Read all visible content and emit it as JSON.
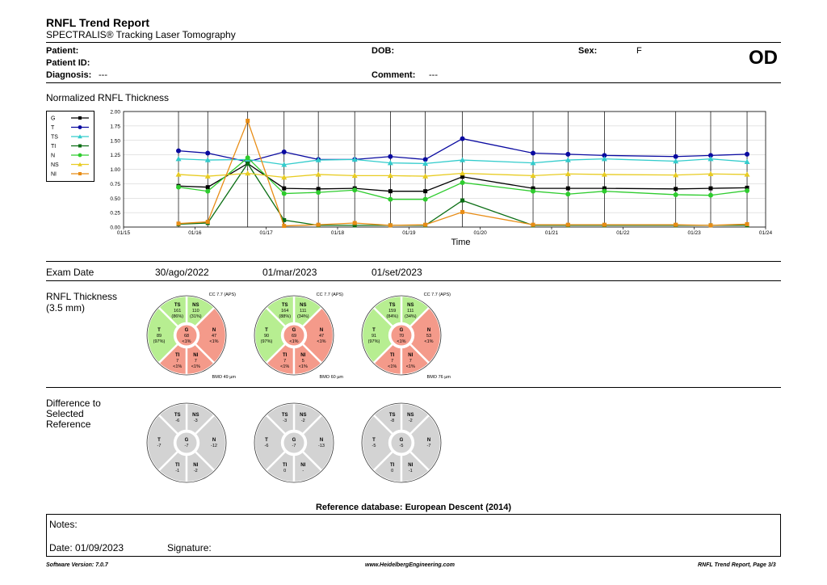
{
  "header": {
    "title": "RNFL Trend Report",
    "subtitle": "SPECTRALIS® Tracking Laser Tomography",
    "patient_label": "Patient:",
    "patient_id_label": "Patient ID:",
    "diagnosis_label": "Diagnosis:",
    "diagnosis_value": "---",
    "dob_label": "DOB:",
    "comment_label": "Comment:",
    "comment_value": "---",
    "sex_label": "Sex:",
    "sex_value": "F",
    "eye": "OD"
  },
  "chart_title": "Normalized RNFL Thickness",
  "legend": [
    {
      "key": "G",
      "color": "#000000",
      "marker": "square"
    },
    {
      "key": "T",
      "color": "#0a0aa0",
      "marker": "circle"
    },
    {
      "key": "TS",
      "color": "#33cccc",
      "marker": "triangle"
    },
    {
      "key": "TI",
      "color": "#0b6e14",
      "marker": "square"
    },
    {
      "key": "N",
      "color": "#2ecc2e",
      "marker": "circle"
    },
    {
      "key": "NS",
      "color": "#e8cc22",
      "marker": "triangle"
    },
    {
      "key": "NI",
      "color": "#e88c14",
      "marker": "square"
    }
  ],
  "chart_data": {
    "type": "line",
    "xlabel": "Time",
    "ylabel": "",
    "ylim": [
      0,
      2
    ],
    "yticks": [
      "0.00",
      "0.25",
      "0.50",
      "0.75",
      "1.00",
      "1.25",
      "1.50",
      "1.75",
      "2.00"
    ],
    "xticks": [
      "01/15",
      "01/16",
      "01/17",
      "01/18",
      "01/19",
      "01/20",
      "01/21",
      "01/22",
      "01/23",
      "01/24"
    ],
    "x": [
      15.77,
      16.18,
      16.74,
      17.25,
      17.73,
      18.24,
      18.74,
      19.23,
      19.75,
      20.74,
      21.23,
      21.74,
      22.74,
      23.23,
      23.74
    ],
    "series": [
      {
        "name": "G",
        "values": [
          0.71,
          0.69,
          1.1,
          0.67,
          0.66,
          0.67,
          0.62,
          0.62,
          0.87,
          0.67,
          0.67,
          0.67,
          0.66,
          0.67,
          0.68
        ]
      },
      {
        "name": "T",
        "values": [
          1.32,
          1.28,
          1.13,
          1.3,
          1.17,
          1.17,
          1.22,
          1.17,
          1.53,
          1.28,
          1.26,
          1.24,
          1.22,
          1.24,
          1.26
        ]
      },
      {
        "name": "TS",
        "values": [
          1.18,
          1.16,
          1.17,
          1.08,
          1.16,
          1.17,
          1.11,
          1.1,
          1.16,
          1.11,
          1.16,
          1.18,
          1.14,
          1.18,
          1.13
        ]
      },
      {
        "name": "TI",
        "values": [
          0.05,
          0.07,
          1.1,
          0.12,
          0.03,
          0.03,
          0.03,
          0.03,
          0.46,
          0.03,
          0.03,
          0.03,
          0.03,
          0.03,
          0.03
        ]
      },
      {
        "name": "N",
        "values": [
          0.69,
          0.62,
          1.2,
          0.58,
          0.6,
          0.64,
          0.48,
          0.48,
          0.77,
          0.62,
          0.57,
          0.62,
          0.56,
          0.55,
          0.63
        ]
      },
      {
        "name": "NS",
        "values": [
          0.91,
          0.88,
          0.93,
          0.86,
          0.91,
          0.89,
          0.89,
          0.88,
          0.93,
          0.89,
          0.92,
          0.91,
          0.9,
          0.92,
          0.91
        ]
      },
      {
        "name": "NI",
        "values": [
          0.06,
          0.09,
          1.84,
          0.02,
          0.04,
          0.07,
          0.03,
          0.04,
          0.26,
          0.04,
          0.04,
          0.04,
          0.04,
          0.03,
          0.05
        ]
      }
    ]
  },
  "exam": {
    "label": "Exam Date",
    "dates": [
      "30/ago/2022",
      "01/mar/2023",
      "01/set/2023"
    ]
  },
  "thickness_section": {
    "label": "RNFL Thickness",
    "sublabel": "(3.5 mm)",
    "charts": [
      {
        "cc": "CC 7.7 (APS)",
        "bmo": "BMO 49 µm",
        "TS": [
          "TS",
          "161",
          "(86%)"
        ],
        "NS": [
          "NS",
          "110",
          "(31%)"
        ],
        "T": [
          "T",
          "89",
          "(97%)"
        ],
        "G": [
          "G",
          "68",
          "<1%"
        ],
        "N": [
          "N",
          "47",
          "<1%"
        ],
        "TI": [
          "TI",
          "7",
          "<1%"
        ],
        "NI": [
          "NI",
          "7",
          "<1%"
        ]
      },
      {
        "cc": "CC 7.7 (APS)",
        "bmo": "BMO 60 µm",
        "TS": [
          "TS",
          "164",
          "(88%)"
        ],
        "NS": [
          "NS",
          "111",
          "(34%)"
        ],
        "T": [
          "T",
          "90",
          "(97%)"
        ],
        "G": [
          "G",
          "69",
          "<1%"
        ],
        "N": [
          "N",
          "47",
          "<1%"
        ],
        "TI": [
          "TI",
          "7",
          "<1%"
        ],
        "NI": [
          "NI",
          "5",
          "<1%"
        ]
      },
      {
        "cc": "CC 7.7 (APS)",
        "bmo": "BMO 76 µm",
        "TS": [
          "TS",
          "159",
          "(84%)"
        ],
        "NS": [
          "NS",
          "111",
          "(34%)"
        ],
        "T": [
          "T",
          "91",
          "(97%)"
        ],
        "G": [
          "G",
          "70",
          "<1%"
        ],
        "N": [
          "N",
          "53",
          "<1%"
        ],
        "TI": [
          "TI",
          "7",
          "<1%"
        ],
        "NI": [
          "NI",
          "7",
          "<1%"
        ]
      }
    ],
    "colors": {
      "green": "#b7ee91",
      "red": "#f49a8a"
    },
    "status": {
      "TS": "green",
      "NS": "green",
      "T": "green",
      "G": "red",
      "N": "red",
      "TI": "red",
      "NI": "red"
    }
  },
  "difference_section": {
    "label_lines": [
      "Difference to",
      "Selected",
      "Reference"
    ],
    "charts": [
      {
        "TS": [
          "TS",
          "-6"
        ],
        "NS": [
          "NS",
          "-3"
        ],
        "T": [
          "T",
          "-7"
        ],
        "G": [
          "G",
          "-7"
        ],
        "N": [
          "N",
          "-12"
        ],
        "TI": [
          "TI",
          "-1"
        ],
        "NI": [
          "NI",
          "-2"
        ]
      },
      {
        "TS": [
          "TS",
          "-3"
        ],
        "NS": [
          "NS",
          "-2"
        ],
        "T": [
          "T",
          "-6"
        ],
        "G": [
          "G",
          "-7"
        ],
        "N": [
          "N",
          "-13"
        ],
        "TI": [
          "TI",
          "0"
        ],
        "NI": [
          "NI",
          "-"
        ]
      },
      {
        "TS": [
          "TS",
          "-8"
        ],
        "NS": [
          "NS",
          "-2"
        ],
        "T": [
          "T",
          "-5"
        ],
        "G": [
          "G",
          "-5"
        ],
        "N": [
          "N",
          "-7"
        ],
        "TI": [
          "TI",
          "0"
        ],
        "NI": [
          "NI",
          "-1"
        ]
      }
    ],
    "color": "#d3d3d3"
  },
  "reference_db": "Reference database: European Descent (2014)",
  "notes": {
    "label": "Notes:",
    "date_text": "Date: 01/09/2023",
    "signature_label": "Signature:"
  },
  "footer": {
    "version": "Software Version: 7.0.7",
    "url": "www.HeidelbergEngineering.com",
    "page": "RNFL Trend Report, Page 3/3"
  }
}
